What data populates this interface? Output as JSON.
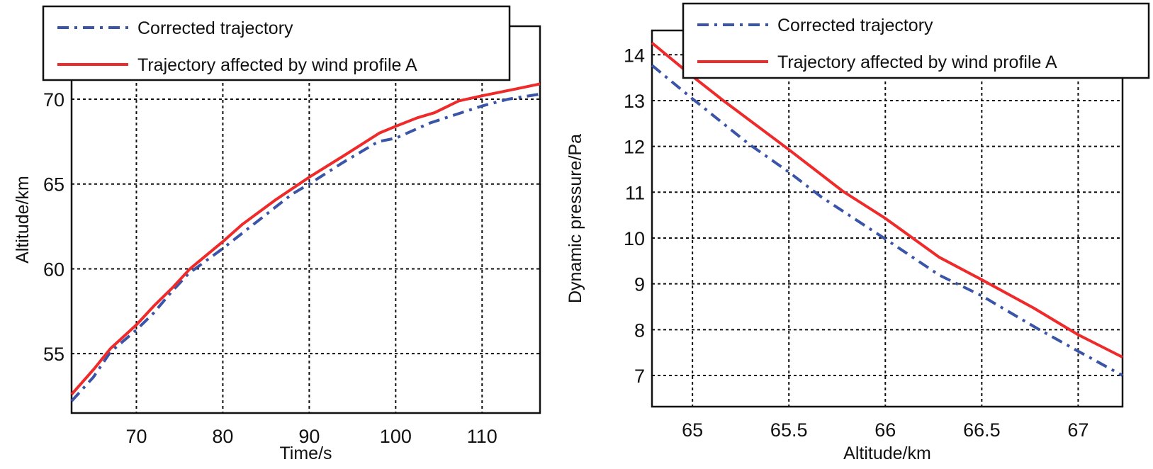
{
  "chart_data": [
    {
      "type": "line",
      "xlabel": "Time/s",
      "ylabel": "Altitude/km",
      "xlim": [
        62.5,
        116.7
      ],
      "ylim": [
        51.5,
        74.3
      ],
      "xticks": [
        70,
        80,
        90,
        100,
        110
      ],
      "yticks": [
        55,
        60,
        65,
        70
      ],
      "grid": true,
      "legend_position": "top",
      "series": [
        {
          "name": "Corrected trajectory",
          "color": "#3a55a8",
          "style": "dash-dot",
          "x": [
            62.5,
            65,
            67,
            70,
            72,
            74,
            76,
            80,
            84,
            88,
            90,
            94,
            98,
            100,
            104,
            107,
            110,
            113,
            116.7
          ],
          "y": [
            52.2,
            53.6,
            55.1,
            56.4,
            57.4,
            58.6,
            59.7,
            61.2,
            62.8,
            64.4,
            65.0,
            66.3,
            67.5,
            67.7,
            68.6,
            69.1,
            69.6,
            70.0,
            70.3
          ]
        },
        {
          "name": "Trajectory affected by wind profile A",
          "color": "#ee2a2a",
          "style": "solid",
          "x": [
            62.5,
            65.1,
            67,
            70,
            72,
            74.2,
            76.2,
            80,
            82.2,
            84.6,
            86.2,
            90,
            94.1,
            98.1,
            100,
            102.5,
            104.5,
            107.3,
            110,
            113.9,
            116.7
          ],
          "y": [
            52.6,
            54.1,
            55.3,
            56.7,
            57.8,
            58.9,
            60.0,
            61.6,
            62.6,
            63.5,
            64.1,
            65.4,
            66.7,
            68.0,
            68.4,
            68.9,
            69.2,
            69.9,
            70.2,
            70.6,
            70.9
          ]
        }
      ]
    },
    {
      "type": "line",
      "xlabel": "Altitude/km",
      "ylabel": "Dynamic pressure/Pa",
      "xlim": [
        64.79,
        67.23
      ],
      "ylim": [
        6.32,
        14.53
      ],
      "xticks": [
        65,
        65.5,
        66,
        66.5,
        67
      ],
      "yticks": [
        7,
        8,
        9,
        10,
        11,
        12,
        13,
        14
      ],
      "grid": true,
      "legend_position": "top-right",
      "series": [
        {
          "name": "Corrected trajectory",
          "color": "#3a55a8",
          "style": "dash-dot",
          "x": [
            64.79,
            65,
            65.29,
            65.5,
            65.67,
            66,
            66.28,
            66.5,
            66.79,
            67,
            67.23
          ],
          "y": [
            13.77,
            13.04,
            12.06,
            11.44,
            10.89,
            9.98,
            9.19,
            8.74,
            8.02,
            7.53,
            7.0
          ]
        },
        {
          "name": "Trajectory affected by wind profile A",
          "color": "#ee2a2a",
          "style": "solid",
          "x": [
            64.79,
            65,
            65.16,
            65.5,
            65.78,
            66,
            66.28,
            66.5,
            66.77,
            67,
            67.23
          ],
          "y": [
            14.26,
            13.53,
            13.0,
            11.93,
            11.02,
            10.43,
            9.58,
            9.09,
            8.47,
            7.89,
            7.4
          ]
        }
      ]
    }
  ]
}
